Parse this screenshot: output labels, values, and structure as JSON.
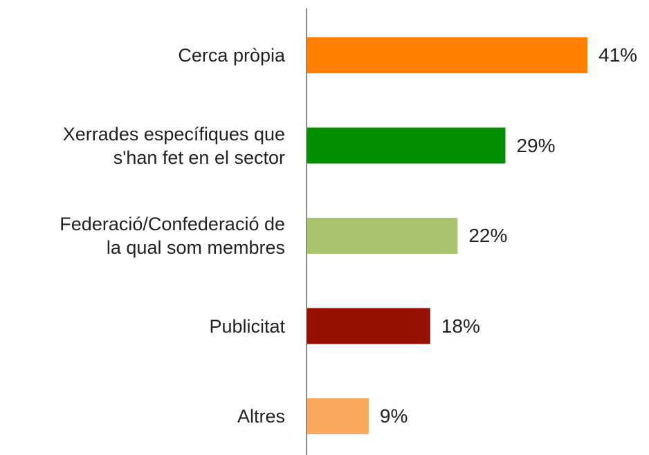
{
  "chart_data": {
    "type": "bar",
    "orientation": "horizontal",
    "categories": [
      "Cerca pròpia",
      "Xerrades específiques que\ns'han fet en el sector",
      "Federació/Confederació de\nla qual som membres",
      "Publicitat",
      "Altres"
    ],
    "values": [
      41,
      29,
      22,
      18,
      9
    ],
    "value_labels": [
      "41%",
      "29%",
      "22%",
      "18%",
      "9%"
    ],
    "colors": [
      "#ff7f00",
      "#008f00",
      "#a9c46c",
      "#941100",
      "#f9a95b"
    ]
  }
}
